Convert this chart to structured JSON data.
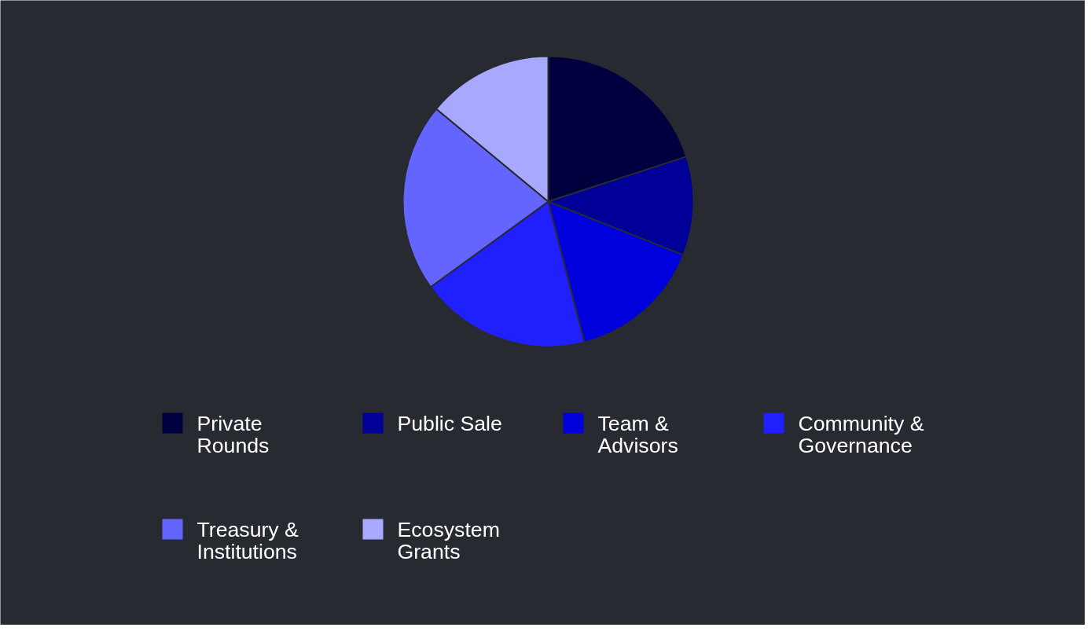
{
  "chart_data": {
    "type": "pie",
    "categories": [
      "Private Rounds",
      "Public Sale",
      "Team & Advisors",
      "Community & Governance",
      "Treasury & Institutions",
      "Ecosystem Grants"
    ],
    "values": [
      20,
      11,
      15,
      19,
      21,
      14
    ],
    "colors": [
      "#00003f",
      "#000099",
      "#0000dd",
      "#2020ff",
      "#6464ff",
      "#a8a8ff"
    ],
    "legend": "bottom"
  }
}
